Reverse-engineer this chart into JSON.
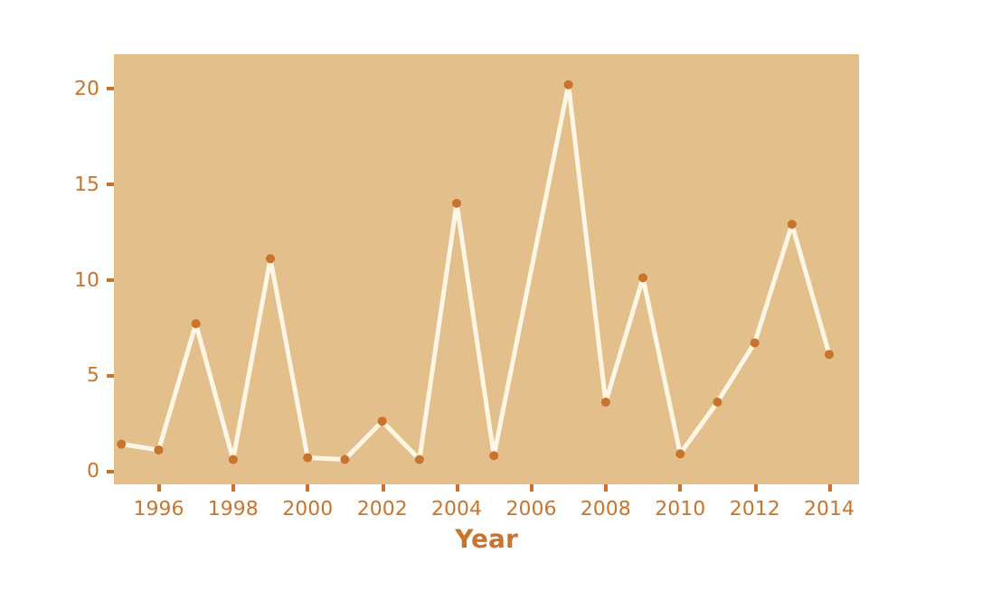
{
  "chart_data": {
    "type": "line",
    "xlabel": "Year",
    "x": [
      1995,
      1996,
      1997,
      1998,
      1999,
      2000,
      2001,
      2002,
      2003,
      2004,
      2005,
      2007,
      2008,
      2009,
      2010,
      2011,
      2012,
      2013,
      2014
    ],
    "series": [
      {
        "color": "#fff6e6",
        "colors": [
          "#c9742c",
          "#c9742c",
          "#c9742c",
          "#c9742c",
          "#c9742c",
          "#c9742c",
          "#c9742c",
          "#c9742c",
          "#c9742c",
          "#c9742c",
          "#c9742c",
          "#c9742c",
          "#c9742c",
          "#c9742c",
          "#c9742c",
          "#c9742c",
          "#c9742c",
          "#c9742c",
          "#c9742c"
        ],
        "values": [
          1.4,
          1.1,
          7.7,
          0.6,
          11.1,
          0.7,
          0.6,
          2.6,
          0.6,
          14.0,
          0.8,
          20.2,
          3.6,
          10.1,
          0.9,
          3.6,
          6.7,
          12.9,
          6.1
        ]
      }
    ],
    "xlim": [
      1994.8,
      2014.8
    ],
    "xticks": [
      1996,
      1998,
      2000,
      2002,
      2004,
      2006,
      2008,
      2010,
      2012,
      2014
    ],
    "ylim": [
      -0.7,
      21.8
    ],
    "yticks": [
      0,
      5,
      10,
      15,
      20
    ],
    "grid": false,
    "marker": "circle",
    "line_style": "solid"
  }
}
